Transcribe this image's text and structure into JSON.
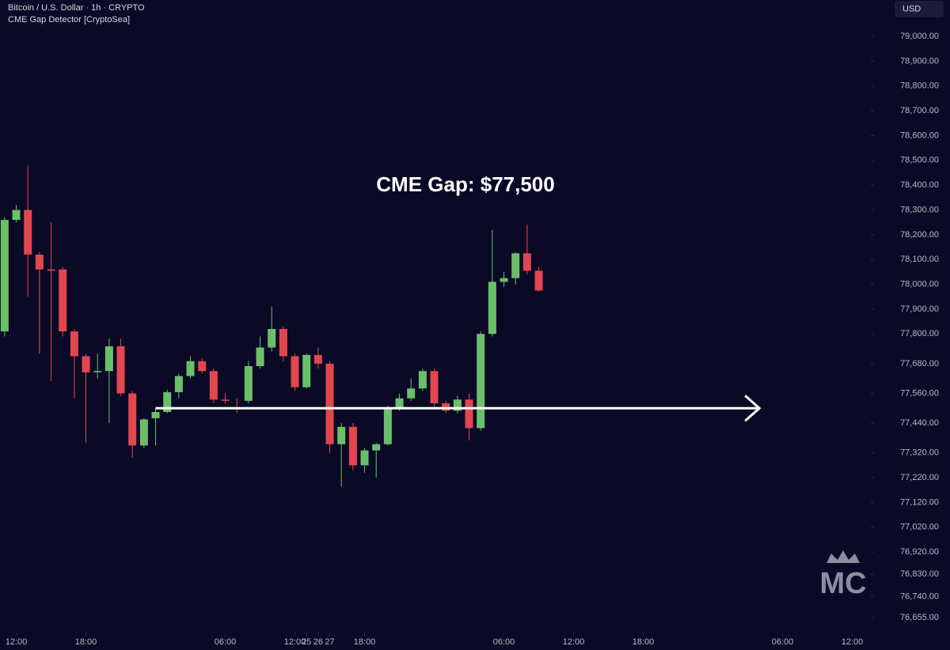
{
  "chart_data": {
    "type": "candlestick",
    "title": "Bitcoin / U.S. Dollar · 1h · CRYPTO",
    "subtitle": "CME Gap Detector [CryptoSea]",
    "currency": "USD",
    "annotation": "CME Gap: $77,500",
    "watermark": "MC",
    "up_color": "#6cbf6a",
    "down_color": "#e2464f",
    "gap_color": "#ffffff",
    "gap_level": 77500,
    "gap_x": [
      12,
      64
    ],
    "x": [
      -1,
      0,
      1,
      2,
      3,
      4,
      5,
      6,
      7,
      8,
      9,
      10,
      11,
      12,
      13,
      14,
      15,
      16,
      17,
      18,
      19,
      20,
      21,
      22,
      23,
      24,
      25,
      26,
      27,
      28,
      29,
      30,
      31,
      32,
      33,
      34,
      35,
      36,
      37,
      38,
      39,
      40,
      41,
      42,
      43,
      44,
      45
    ],
    "open": [
      77810,
      78260,
      78300,
      78120,
      78060,
      78060,
      77810,
      77710,
      77645,
      77650,
      77750,
      77560,
      77350,
      77460,
      77485,
      77565,
      77630,
      77690,
      77650,
      77535,
      77500,
      77530,
      77670,
      77745,
      77820,
      77710,
      77585,
      77715,
      77680,
      77355,
      77425,
      77270,
      77330,
      77355,
      77500,
      77540,
      77580,
      77650,
      77520,
      77490,
      77535,
      77420,
      77800,
      78010,
      78025,
      78125,
      78055
    ],
    "high": [
      78270,
      78320,
      78480,
      78130,
      78250,
      78070,
      77820,
      77720,
      77720,
      77780,
      77780,
      77570,
      77460,
      77500,
      77575,
      77640,
      77710,
      77700,
      77660,
      77560,
      77540,
      77690,
      77790,
      77910,
      77830,
      77720,
      77720,
      77745,
      77690,
      77440,
      77440,
      77340,
      77360,
      77510,
      77560,
      77620,
      77660,
      77660,
      77530,
      77550,
      77560,
      77810,
      78220,
      78050,
      78130,
      78240,
      78070
    ],
    "low": [
      77790,
      78250,
      77950,
      77720,
      77610,
      77790,
      77540,
      77360,
      77620,
      77440,
      77550,
      77300,
      77340,
      77350,
      77480,
      77540,
      77620,
      77640,
      77520,
      77520,
      77480,
      77520,
      77660,
      77730,
      77690,
      77570,
      77580,
      77660,
      77320,
      77185,
      77250,
      77240,
      77220,
      77350,
      77490,
      77530,
      77570,
      77500,
      77480,
      77480,
      77370,
      77410,
      77790,
      77990,
      78000,
      78040,
      77970
    ],
    "close": [
      78260,
      78300,
      78120,
      78060,
      78055,
      77810,
      77710,
      77645,
      77650,
      77750,
      77560,
      77350,
      77455,
      77485,
      77565,
      77630,
      77690,
      77650,
      77535,
      77530,
      77495,
      77670,
      77745,
      77820,
      77710,
      77585,
      77715,
      77680,
      77355,
      77425,
      77270,
      77330,
      77355,
      77500,
      77540,
      77580,
      77650,
      77520,
      77490,
      77535,
      77420,
      77800,
      78010,
      78025,
      78125,
      78055,
      77975
    ],
    "xlim": [
      -1.4,
      73.6
    ],
    "ylim": [
      76595,
      79147
    ],
    "xticks": [
      {
        "value": 0,
        "label": "12:00"
      },
      {
        "value": 6,
        "label": "18:00"
      },
      25,
      {
        "value": 18,
        "label": "06:00"
      },
      {
        "value": 24,
        "label": "12:00"
      },
      {
        "value": 30,
        "label": "18:00"
      },
      26,
      {
        "value": 42,
        "label": "06:00"
      },
      {
        "value": 48,
        "label": "12:00"
      },
      {
        "value": 54,
        "label": "18:00"
      },
      27,
      {
        "value": 66,
        "label": "06:00"
      },
      {
        "value": 72,
        "label": "12:00"
      }
    ],
    "xtick_dates": [],
    "yticks": [
      {
        "value": 79000,
        "label": "79,000.00"
      },
      {
        "value": 78900,
        "label": "78,900.00"
      },
      {
        "value": 78800,
        "label": "78,800.00"
      },
      {
        "value": 78700,
        "label": "78,700.00"
      },
      {
        "value": 78600,
        "label": "78,600.00"
      },
      {
        "value": 78500,
        "label": "78,500.00"
      },
      {
        "value": 78400,
        "label": "78,400.00"
      },
      {
        "value": 78300,
        "label": "78,300.00"
      },
      {
        "value": 78200,
        "label": "78,200.00"
      },
      {
        "value": 78100,
        "label": "78,100.00"
      },
      {
        "value": 78000,
        "label": "78,000.00"
      },
      {
        "value": 77900,
        "label": "77,900.00"
      },
      {
        "value": 77800,
        "label": "77,800.00"
      },
      {
        "value": 77680,
        "label": "77,680.00"
      },
      {
        "value": 77560,
        "label": "77,560.00"
      },
      {
        "value": 77440,
        "label": "77,440.00"
      },
      {
        "value": 77320,
        "label": "77,320.00"
      },
      {
        "value": 77220,
        "label": "77,220.00"
      },
      {
        "value": 77120,
        "label": "77,120.00"
      },
      {
        "value": 77020,
        "label": "77,020.00"
      },
      {
        "value": 76920,
        "label": "76,920.00"
      },
      {
        "value": 76830,
        "label": "76,830.00"
      },
      {
        "value": 76740,
        "label": "76,740.00"
      },
      {
        "value": 76655,
        "label": "76,655.00"
      }
    ]
  }
}
